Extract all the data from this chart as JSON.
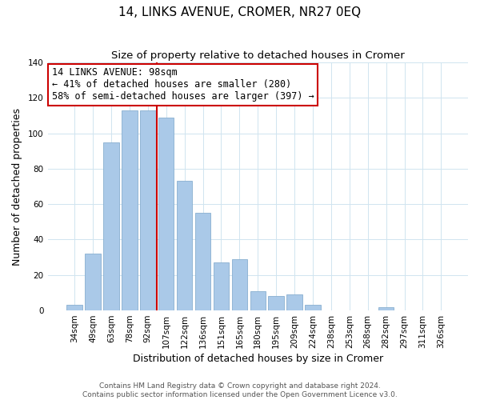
{
  "title": "14, LINKS AVENUE, CROMER, NR27 0EQ",
  "subtitle": "Size of property relative to detached houses in Cromer",
  "xlabel": "Distribution of detached houses by size in Cromer",
  "ylabel": "Number of detached properties",
  "categories": [
    "34sqm",
    "49sqm",
    "63sqm",
    "78sqm",
    "92sqm",
    "107sqm",
    "122sqm",
    "136sqm",
    "151sqm",
    "165sqm",
    "180sqm",
    "195sqm",
    "209sqm",
    "224sqm",
    "238sqm",
    "253sqm",
    "268sqm",
    "282sqm",
    "297sqm",
    "311sqm",
    "326sqm"
  ],
  "values": [
    3,
    32,
    95,
    113,
    113,
    109,
    73,
    55,
    27,
    29,
    11,
    8,
    9,
    3,
    0,
    0,
    0,
    2,
    0,
    0,
    0
  ],
  "bar_color": "#aac9e8",
  "bar_edge_color": "#88afd0",
  "vline_x": 4.5,
  "vline_color": "#cc0000",
  "annotation_line1": "14 LINKS AVENUE: 98sqm",
  "annotation_line2": "← 41% of detached houses are smaller (280)",
  "annotation_line3": "58% of semi-detached houses are larger (397) →",
  "annotation_box_color": "#ffffff",
  "annotation_box_edge": "#cc0000",
  "footer1": "Contains HM Land Registry data © Crown copyright and database right 2024.",
  "footer2": "Contains public sector information licensed under the Open Government Licence v3.0.",
  "ylim": [
    0,
    140
  ],
  "yticks": [
    0,
    20,
    40,
    60,
    80,
    100,
    120,
    140
  ],
  "title_fontsize": 11,
  "subtitle_fontsize": 9.5,
  "axis_label_fontsize": 9,
  "tick_fontsize": 7.5,
  "footer_fontsize": 6.5,
  "annotation_fontsize": 8.5,
  "grid_color": "#d0e4f0"
}
